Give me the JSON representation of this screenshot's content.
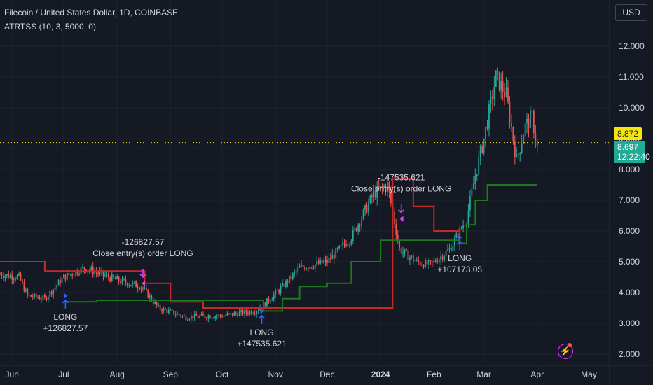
{
  "header": {
    "title": "Filecoin / United States Dollar, 1D, COINBASE",
    "indicator": "ATRTSS (10, 3, 5000, 0)"
  },
  "currency_button": "USD",
  "price_badges": {
    "last_price": "8.872",
    "current_price": "8.697",
    "countdown": "12:22:40"
  },
  "icons": {
    "alert": "lightning-icon"
  },
  "colors": {
    "background": "#151924",
    "grid": "#1e222d",
    "up": "#26a69a",
    "down": "#ef5350",
    "stop_long": "#1b7a1b",
    "stop_short": "#c62828",
    "entry_arrow": "#2962ff",
    "exit_arrow": "#e040fb",
    "text": "#d1d4dc"
  },
  "chart_data": {
    "type": "candlestick",
    "title": "Filecoin / United States Dollar, 1D, COINBASE",
    "x_ticks": [
      "Jun",
      "Jul",
      "Aug",
      "Sep",
      "Oct",
      "Nov",
      "Dec",
      "2024",
      "Feb",
      "Mar",
      "Apr",
      "May"
    ],
    "y_ticks": [
      "12.000",
      "11.000",
      "10.000",
      "9.000",
      "8.000",
      "7.000",
      "6.000",
      "5.000",
      "4.000",
      "3.000",
      "2.000"
    ],
    "ylim": [
      1.7,
      12.7
    ],
    "grid": true,
    "price_key_points": [
      {
        "date": "2023-05-25",
        "close": 4.6
      },
      {
        "date": "2023-06-05",
        "close": 4.5
      },
      {
        "date": "2023-06-10",
        "close": 3.9
      },
      {
        "date": "2023-06-20",
        "close": 3.8
      },
      {
        "date": "2023-07-01",
        "close": 4.5
      },
      {
        "date": "2023-07-13",
        "close": 4.8
      },
      {
        "date": "2023-08-01",
        "close": 4.4
      },
      {
        "date": "2023-08-15",
        "close": 4.2
      },
      {
        "date": "2023-08-25",
        "close": 3.5
      },
      {
        "date": "2023-09-10",
        "close": 3.2
      },
      {
        "date": "2023-10-01",
        "close": 3.25
      },
      {
        "date": "2023-10-20",
        "close": 3.4
      },
      {
        "date": "2023-10-25",
        "close": 3.6
      },
      {
        "date": "2023-11-05",
        "close": 4.2
      },
      {
        "date": "2023-11-15",
        "close": 4.8
      },
      {
        "date": "2023-12-01",
        "close": 5.0
      },
      {
        "date": "2023-12-15",
        "close": 5.8
      },
      {
        "date": "2023-12-28",
        "close": 7.2
      },
      {
        "date": "2024-01-05",
        "close": 7.5
      },
      {
        "date": "2024-01-12",
        "close": 5.4
      },
      {
        "date": "2024-01-22",
        "close": 5.0
      },
      {
        "date": "2024-01-30",
        "close": 4.9
      },
      {
        "date": "2024-02-10",
        "close": 5.4
      },
      {
        "date": "2024-02-20",
        "close": 6.4
      },
      {
        "date": "2024-02-25",
        "close": 7.8
      },
      {
        "date": "2024-03-01",
        "close": 9.0
      },
      {
        "date": "2024-03-08",
        "close": 11.0
      },
      {
        "date": "2024-03-14",
        "close": 10.4
      },
      {
        "date": "2024-03-20",
        "close": 8.3
      },
      {
        "date": "2024-03-25",
        "close": 9.4
      },
      {
        "date": "2024-03-29",
        "close": 9.7
      },
      {
        "date": "2024-04-01",
        "close": 8.7
      }
    ],
    "stop_line_short": [
      {
        "date": "2023-05-25",
        "value": 5.0
      },
      {
        "date": "2023-06-12",
        "value": 5.0
      },
      {
        "date": "2023-06-20",
        "value": 4.7
      },
      {
        "date": "2023-06-30",
        "value": 4.7
      },
      {
        "date": "2023-08-17",
        "value": 4.3
      },
      {
        "date": "2023-09-01",
        "value": 3.7
      },
      {
        "date": "2023-09-20",
        "value": 3.5
      },
      {
        "date": "2023-10-24",
        "value": 3.5
      },
      {
        "date": "2024-01-08",
        "value": 7.7
      },
      {
        "date": "2024-01-13",
        "value": 7.7
      },
      {
        "date": "2024-01-20",
        "value": 6.8
      },
      {
        "date": "2024-02-01",
        "value": 6.0
      },
      {
        "date": "2024-02-16",
        "value": 5.8
      }
    ],
    "stop_line_long": [
      {
        "date": "2023-07-02",
        "value": 3.7
      },
      {
        "date": "2023-07-20",
        "value": 3.75
      },
      {
        "date": "2023-08-16",
        "value": 3.75
      },
      {
        "date": "2023-10-25",
        "value": 3.4
      },
      {
        "date": "2023-11-05",
        "value": 3.8
      },
      {
        "date": "2023-11-15",
        "value": 4.2
      },
      {
        "date": "2023-12-01",
        "value": 4.3
      },
      {
        "date": "2023-12-15",
        "value": 5.0
      },
      {
        "date": "2024-01-01",
        "value": 5.7
      },
      {
        "date": "2024-01-14",
        "value": 5.7
      },
      {
        "date": "2024-02-16",
        "value": 5.6
      },
      {
        "date": "2024-02-20",
        "value": 6.2
      },
      {
        "date": "2024-02-25",
        "value": 7.0
      },
      {
        "date": "2024-03-03",
        "value": 7.5
      },
      {
        "date": "2024-04-01",
        "value": 7.5
      }
    ],
    "reference_lines": [
      {
        "value": 8.872,
        "label": "8.872",
        "style": "dotted",
        "color": "#f5e50a"
      },
      {
        "value": 8.697,
        "label": "8.697",
        "style": "dotted",
        "color": "#22ab94"
      }
    ],
    "signals": [
      {
        "date": "2023-07-02",
        "price": 3.8,
        "type": "entry",
        "lines": [
          "LONG",
          "+126827.57"
        ]
      },
      {
        "date": "2023-08-16",
        "price": 4.5,
        "type": "exit",
        "lines": [
          "-126827.57",
          "Close entry(s) order LONG"
        ]
      },
      {
        "date": "2023-10-24",
        "price": 3.3,
        "type": "entry",
        "lines": [
          "LONG",
          "+147535.621"
        ]
      },
      {
        "date": "2024-01-13",
        "price": 6.6,
        "type": "exit",
        "lines": [
          "-147535.621",
          "Close entry(s) order LONG"
        ]
      },
      {
        "date": "2024-02-16",
        "price": 5.7,
        "type": "entry",
        "lines": [
          "LONG",
          "+107173.05"
        ]
      }
    ]
  }
}
